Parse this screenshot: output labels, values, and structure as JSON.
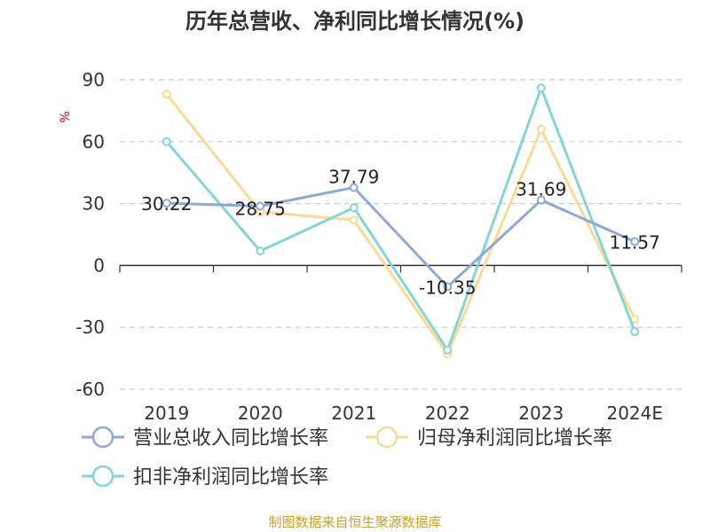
{
  "chart_data": {
    "type": "line",
    "title": "历年总营收、净利同比增长情况(%)",
    "ylabel": "%",
    "categories": [
      "2019",
      "2020",
      "2021",
      "2022",
      "2023",
      "2024E"
    ],
    "ylim": [
      -60,
      90
    ],
    "yticks": [
      90,
      60,
      30,
      0,
      -30,
      -60
    ],
    "grid": true,
    "legend_position": "bottom",
    "series": [
      {
        "name": "营业总收入同比增长率",
        "values": [
          30.22,
          28.75,
          37.79,
          -10.35,
          31.69,
          11.57
        ],
        "labels": [
          "30.22",
          "28.75",
          "37.79",
          "-10.35",
          "31.69",
          "11.57"
        ],
        "color": "#8FA8D8"
      },
      {
        "name": "归母净利润同比增长率",
        "values": [
          83,
          26,
          22,
          -43,
          66,
          -26
        ],
        "color": "#FADA99"
      },
      {
        "name": "扣非净利润同比增长率",
        "values": [
          60,
          7,
          28,
          -41,
          86,
          -32
        ],
        "color": "#86D4D6"
      }
    ],
    "footer": "制图数据来自恒生聚源数据库"
  }
}
